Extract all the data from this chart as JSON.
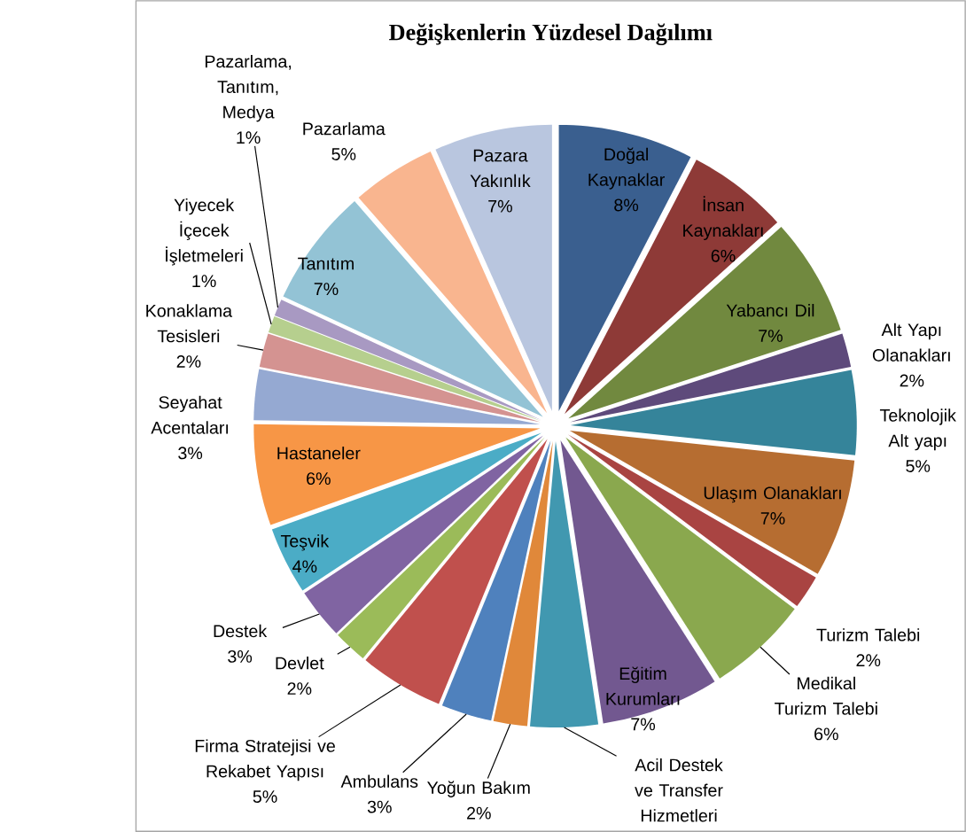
{
  "chart_data": {
    "type": "pie",
    "title": "Değişkenlerin Yüzdesel Dağılımı",
    "categories": [
      "Doğal Kaynaklar",
      "İnsan Kaynakları",
      "Yabancı Dil",
      "Alt Yapı Olanakları",
      "Teknolojik Alt yapı",
      "Ulaşım Olanakları",
      "Turizm Talebi",
      "Medikal Turizm Talebi",
      "Eğitim Kurumları",
      "Acil Destek ve Transfer Hizmetleri",
      "Yoğun Bakım",
      "Ambulans",
      "Firma Stratejisi ve Rekabet Yapısı",
      "Devlet",
      "Destek",
      "Teşvik",
      "Hastaneler",
      "Seyahat Acentaları",
      "Konaklama Tesisleri",
      "Yiyecek İçecek İşletmeleri",
      "Pazarlama, Tanıtım, Medya",
      "Tanıtım",
      "Pazarlama",
      "Pazara Yakınlık"
    ],
    "values": [
      8,
      6,
      7,
      2,
      5,
      7,
      2,
      6,
      7,
      4,
      2,
      3,
      5,
      2,
      3,
      4,
      6,
      3,
      2,
      1,
      1,
      7,
      5,
      7
    ],
    "value_labels": [
      "8%",
      "6%",
      "7%",
      "2%",
      "5%",
      "7%",
      "2%",
      "6%",
      "7%",
      null,
      "2%",
      "3%",
      "5%",
      "2%",
      "3%",
      "4%",
      "6%",
      "3%",
      "2%",
      "1%",
      "1%",
      "7%",
      "5%",
      "7%"
    ],
    "colors": [
      "#3a5f8f",
      "#8e3a37",
      "#71893f",
      "#5e4a7b",
      "#35849a",
      "#b66d31",
      "#a94442",
      "#8aa84e",
      "#725890",
      "#4198b0",
      "#e0883a",
      "#4f81bd",
      "#c0504d",
      "#9bbb59",
      "#8064a2",
      "#4bacc6",
      "#f79646",
      "#95a9d2",
      "#d49391",
      "#b6cf8e",
      "#a899c2",
      "#93c3d5",
      "#f9b58f",
      "#b9c6df"
    ]
  }
}
